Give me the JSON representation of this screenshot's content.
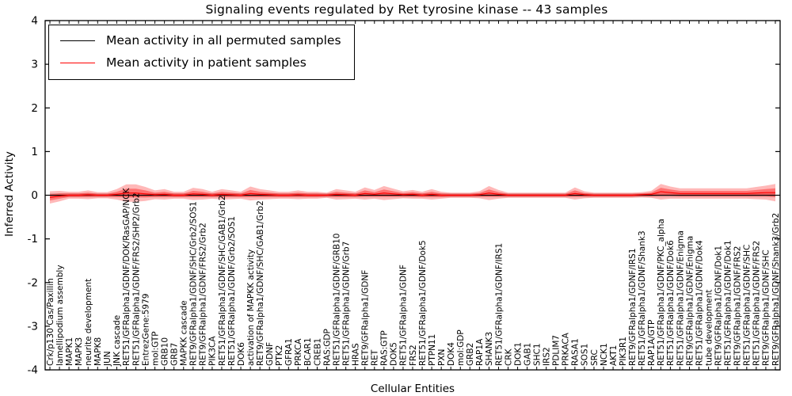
{
  "chart_data": {
    "type": "violin",
    "title": "Signaling events regulated by Ret tyrosine kinase -- 43 samples",
    "xlabel": "Cellular Entities",
    "ylabel": "Inferred Activity",
    "ylim": [
      -4,
      4
    ],
    "yticks": [
      4,
      3,
      2,
      1,
      0,
      -1,
      -2,
      -3,
      -4
    ],
    "grid": false,
    "legend_position": "upper left",
    "legend": [
      {
        "label": "Mean activity in all permuted samples",
        "color": "#000000"
      },
      {
        "label": "Mean activity in patient samples",
        "color": "#ff0000"
      }
    ],
    "colors": {
      "permuted_line": "#000000",
      "patient_line": "#ff0000",
      "patient_band": "#ff0000",
      "permuted_band": "#999999",
      "frame": "#000000"
    },
    "categories": [
      "Crk/p130 Cas/Paxillin",
      "lamellipodium assembly",
      "MAPK1",
      "MAPK3",
      "neurite development",
      "MAPK8",
      "JUN",
      "JNK cascade",
      "RET51/GFRalpha1/GDNF/DOK/RasGAP/NCK",
      "RET51/GFRalpha1/GDNF/FRS2/SHP2/Grb2",
      "EntrezGene:5979",
      "mol:GTP",
      "GRB10",
      "GRB7",
      "MAPKK cascade",
      "RET9/GFRalpha1/GDNF/SHC/Grb2/SOS1",
      "RET9/GFRalpha1/GDNF/FRS2/Grb2",
      "PIK3CA",
      "RET51/GFRalpha1/GDNF/SHC/GAB1/Grb2",
      "RET51/GFRalpha1/GDNF/Grb2/SOS1",
      "DOK6",
      "activation of MAPKK activity",
      "RET9/GFRalpha1/GDNF/SHC/GAB1/Grb2",
      "GDNF",
      "PTK2",
      "GFRA1",
      "PRKCA",
      "BCAR1",
      "CREB1",
      "RAS:GDP",
      "RET51/GFRalpha1/GDNF/GRB10",
      "RET51/GFRalpha1/GDNF/Grb7",
      "HRAS",
      "RET9/GFRalpha1/GDNF",
      "RET",
      "RAS:GTP",
      "DOK5",
      "RET51/GFRalpha1/GDNF",
      "FRS2",
      "RET51/GFRalpha1/GDNF/Dok5",
      "PTPN11",
      "PXN",
      "DOK4",
      "mol:GDP",
      "GRB2",
      "RAP1A",
      "SHANK3",
      "RET51/GFRalpha1/GDNF/IRS1",
      "CRK",
      "DOK1",
      "GAB1",
      "SHC1",
      "IRS2",
      "PDLIM7",
      "PRKACA",
      "RASA1",
      "SOS1",
      "SRC",
      "NCK1",
      "AKT1",
      "PIK3R1",
      "RET9/GFRalpha1/GDNF/IRS1",
      "RET51/GFRalpha1/GDNF/Shank3",
      "RAP1A/GTP",
      "RET51/GFRalpha1/GDNF/PKC_alpha",
      "RET51/GFRalpha1/GDNF/Dok6",
      "RET51/GFRalpha1/GDNF/Enigma",
      "RET9/GFRalpha1/GDNF/Enigma",
      "RET51/GFRalpha1/GDNF/Dok4",
      "tube development",
      "RET9/GFRalpha1/GDNF/Dok1",
      "RET51/GFRalpha1/GDNF/Dok1",
      "RET9/GFRalpha1/GDNF/FRS2",
      "RET51/GFRalpha1/GDNF/SHC",
      "RET51/GFRalpha1/GDNF/FRS2",
      "RET9/GFRalpha1/GDNF/SHC",
      "RET9/GFRalpha1/GDNF/Shank3/Grb2"
    ],
    "series": [
      {
        "name": "Mean activity in all permuted samples",
        "mean": 0.0,
        "spread": 0.04
      },
      {
        "name": "Mean activity in patient samples"
      }
    ],
    "patient_mean": [
      -0.05,
      -0.02,
      0,
      0,
      0.01,
      0,
      0,
      0.02,
      0.05,
      0.05,
      0.03,
      0.01,
      0.02,
      0,
      0,
      0.03,
      0.02,
      0,
      0.02,
      0.01,
      0,
      0.04,
      0.02,
      0.01,
      0,
      0,
      0.01,
      0,
      0,
      0,
      0.02,
      0.01,
      0,
      0.04,
      0.02,
      0.05,
      0.03,
      0.01,
      0.02,
      0,
      0.02,
      0,
      0,
      0,
      0,
      0.01,
      0.05,
      0.02,
      0,
      0,
      0,
      0,
      0,
      0,
      0,
      0.04,
      0.01,
      0,
      0,
      0,
      0,
      0,
      0.01,
      0.02,
      0.08,
      0.06,
      0.04,
      0.04,
      0.04,
      0.04,
      0.04,
      0.04,
      0.04,
      0.04,
      0.05,
      0.06,
      0.06
    ],
    "patient_spread": [
      0.14,
      0.12,
      0.08,
      0.08,
      0.1,
      0.07,
      0.07,
      0.12,
      0.2,
      0.2,
      0.16,
      0.1,
      0.12,
      0.08,
      0.08,
      0.14,
      0.12,
      0.08,
      0.12,
      0.1,
      0.08,
      0.16,
      0.12,
      0.1,
      0.08,
      0.08,
      0.1,
      0.08,
      0.08,
      0.06,
      0.12,
      0.1,
      0.08,
      0.14,
      0.1,
      0.16,
      0.12,
      0.08,
      0.1,
      0.08,
      0.12,
      0.08,
      0.06,
      0.06,
      0.06,
      0.08,
      0.16,
      0.1,
      0.06,
      0.06,
      0.06,
      0.06,
      0.06,
      0.06,
      0.06,
      0.14,
      0.08,
      0.06,
      0.06,
      0.06,
      0.06,
      0.06,
      0.06,
      0.08,
      0.18,
      0.14,
      0.12,
      0.12,
      0.12,
      0.12,
      0.12,
      0.12,
      0.12,
      0.12,
      0.14,
      0.16,
      0.2
    ],
    "permuted_mean": 0.0,
    "permuted_spread": 0.04
  }
}
